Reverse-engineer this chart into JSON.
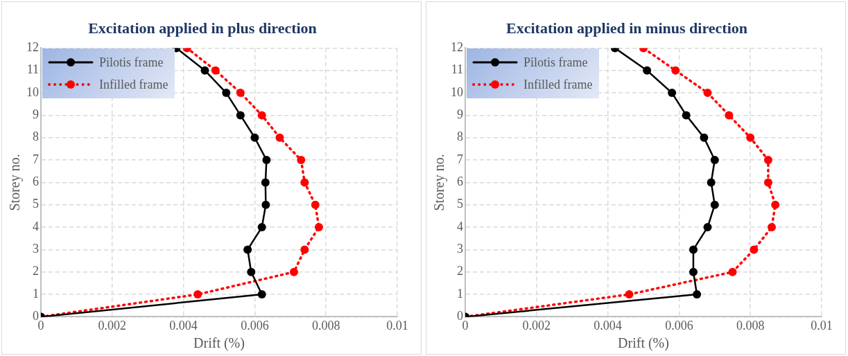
{
  "chart_data": [
    {
      "type": "line",
      "title": "Excitation applied in plus direction",
      "xlabel": "Drift (%)",
      "ylabel": "Storey no.",
      "xlim": [
        0,
        0.01
      ],
      "xticks": [
        0,
        0.002,
        0.004,
        0.006,
        0.008,
        0.01
      ],
      "ylim": [
        0,
        12
      ],
      "yticks": [
        0,
        1,
        2,
        3,
        4,
        5,
        6,
        7,
        8,
        9,
        10,
        11,
        12
      ],
      "grid": true,
      "legend": "top left",
      "marker": "circle",
      "series": [
        {
          "name": "Pilotis frame",
          "color": "#000000",
          "line_style": "solid",
          "x": [
            0,
            0.0062,
            0.0059,
            0.0058,
            0.0062,
            0.00631,
            0.0063,
            0.00633,
            0.006,
            0.0056,
            0.0052,
            0.0046,
            0.0038
          ],
          "values": [
            0,
            1,
            2,
            3,
            4,
            5,
            6,
            7,
            8,
            9,
            10,
            11,
            12
          ]
        },
        {
          "name": "Infilled frame",
          "color": "#ff0000",
          "line_style": "dotted",
          "x": [
            0,
            0.0044,
            0.0071,
            0.0074,
            0.0078,
            0.0077,
            0.0074,
            0.0073,
            0.0067,
            0.0062,
            0.0056,
            0.0049,
            0.0041
          ],
          "values": [
            0,
            1,
            2,
            3,
            4,
            5,
            6,
            7,
            8,
            9,
            10,
            11,
            12
          ]
        }
      ]
    },
    {
      "type": "line",
      "title": "Excitation applied in minus direction",
      "xlabel": "Drift (%)",
      "ylabel": "Storey no.",
      "xlim": [
        0,
        0.01
      ],
      "xticks": [
        0,
        0.002,
        0.004,
        0.006,
        0.008,
        0.01
      ],
      "ylim": [
        0,
        12
      ],
      "yticks": [
        0,
        1,
        2,
        3,
        4,
        5,
        6,
        7,
        8,
        9,
        10,
        11,
        12
      ],
      "grid": true,
      "legend": "top left",
      "marker": "circle",
      "series": [
        {
          "name": "Pilotis frame",
          "color": "#000000",
          "line_style": "solid",
          "x": [
            0,
            0.0065,
            0.0064,
            0.0064,
            0.0068,
            0.007,
            0.0069,
            0.007,
            0.0067,
            0.0062,
            0.0058,
            0.0051,
            0.0042
          ],
          "values": [
            0,
            1,
            2,
            3,
            4,
            5,
            6,
            7,
            8,
            9,
            10,
            11,
            12
          ]
        },
        {
          "name": "Infilled frame",
          "color": "#ff0000",
          "line_style": "dotted",
          "x": [
            0,
            0.0046,
            0.0075,
            0.0081,
            0.0086,
            0.0087,
            0.0085,
            0.0085,
            0.008,
            0.0074,
            0.0068,
            0.0059,
            0.005
          ],
          "values": [
            0,
            1,
            2,
            3,
            4,
            5,
            6,
            7,
            8,
            9,
            10,
            11,
            12
          ]
        }
      ]
    }
  ]
}
